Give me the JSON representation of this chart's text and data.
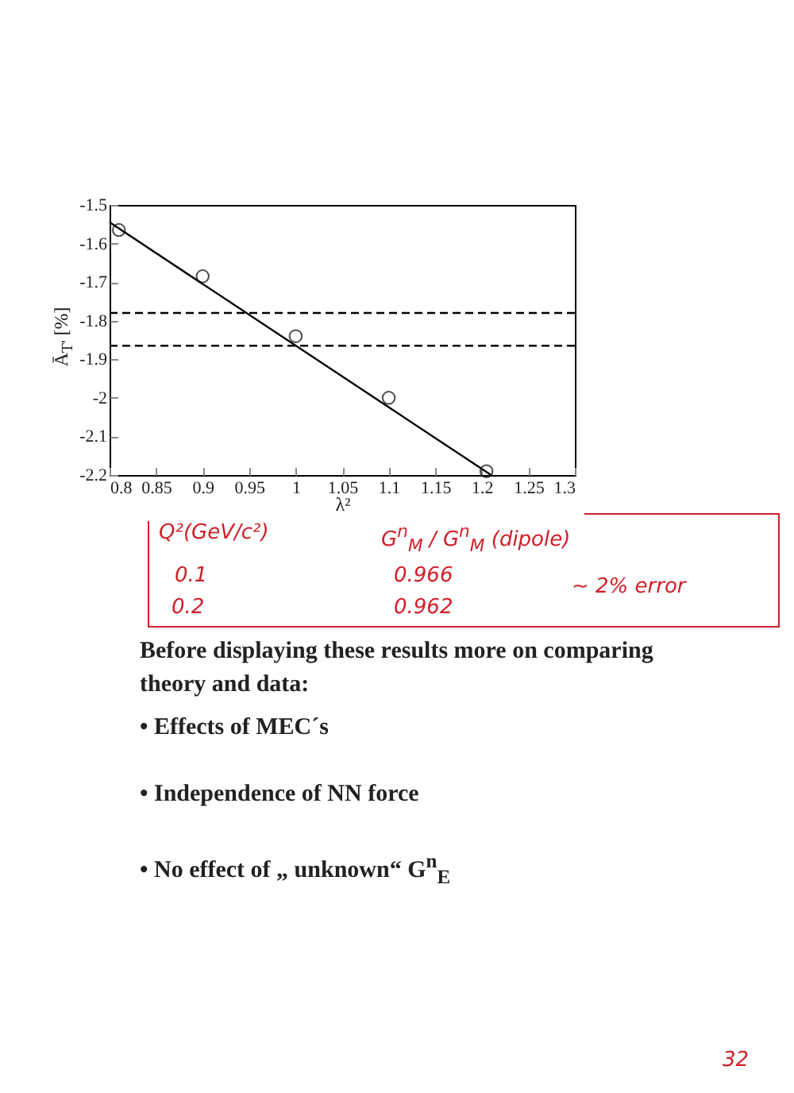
{
  "chart_data": {
    "type": "scatter",
    "xlabel": "λ²",
    "ylabel": "Ā$_{T'}$ [%]",
    "series": [
      {
        "type": "line",
        "color": "#000000",
        "x": [
          0.8,
          1.21
        ],
        "values": [
          -1.545,
          -2.2
        ],
        "marker": "none"
      },
      {
        "color": "#000000",
        "x": [
          0.81,
          0.9,
          1.0,
          1.1,
          1.205
        ],
        "values": [
          -1.565,
          -1.685,
          -1.84,
          -2.0,
          -2.19
        ],
        "marker": "circle"
      }
    ],
    "xlim": [
      0.8,
      1.3
    ],
    "xticks": [
      0.8,
      0.85,
      0.9,
      0.95,
      1,
      1.05,
      1.1,
      1.15,
      1.2,
      1.25,
      1.3
    ],
    "ylim": [
      -2.2,
      -1.5
    ],
    "yticks": [
      -2.2,
      -2.1,
      -2,
      -1.9,
      -1.8,
      -1.7,
      -1.6,
      -1.5
    ],
    "ref_lines": [
      {
        "axis": "y",
        "value": -1.78,
        "line_style": "dashed",
        "color": "#000000"
      },
      {
        "axis": "y",
        "value": -1.865,
        "line_style": "dashed",
        "color": "#000000"
      }
    ],
    "grid": false,
    "annotations": [
      "Q²(GeV/c²)",
      "0.1",
      "0.2",
      "G$^{n}$$_{M}$ / G$^{n}$$_{M}$ (dipole)",
      "0.966",
      "0.962",
      "~ 2% error",
      "Before displaying these results more on comparing theory and data:",
      "•   Effects of MEC´s",
      "•   Independence of NN force",
      "•   No effect of „ unknown“ G$^{n}$$_{E}$",
      "32"
    ]
  }
}
